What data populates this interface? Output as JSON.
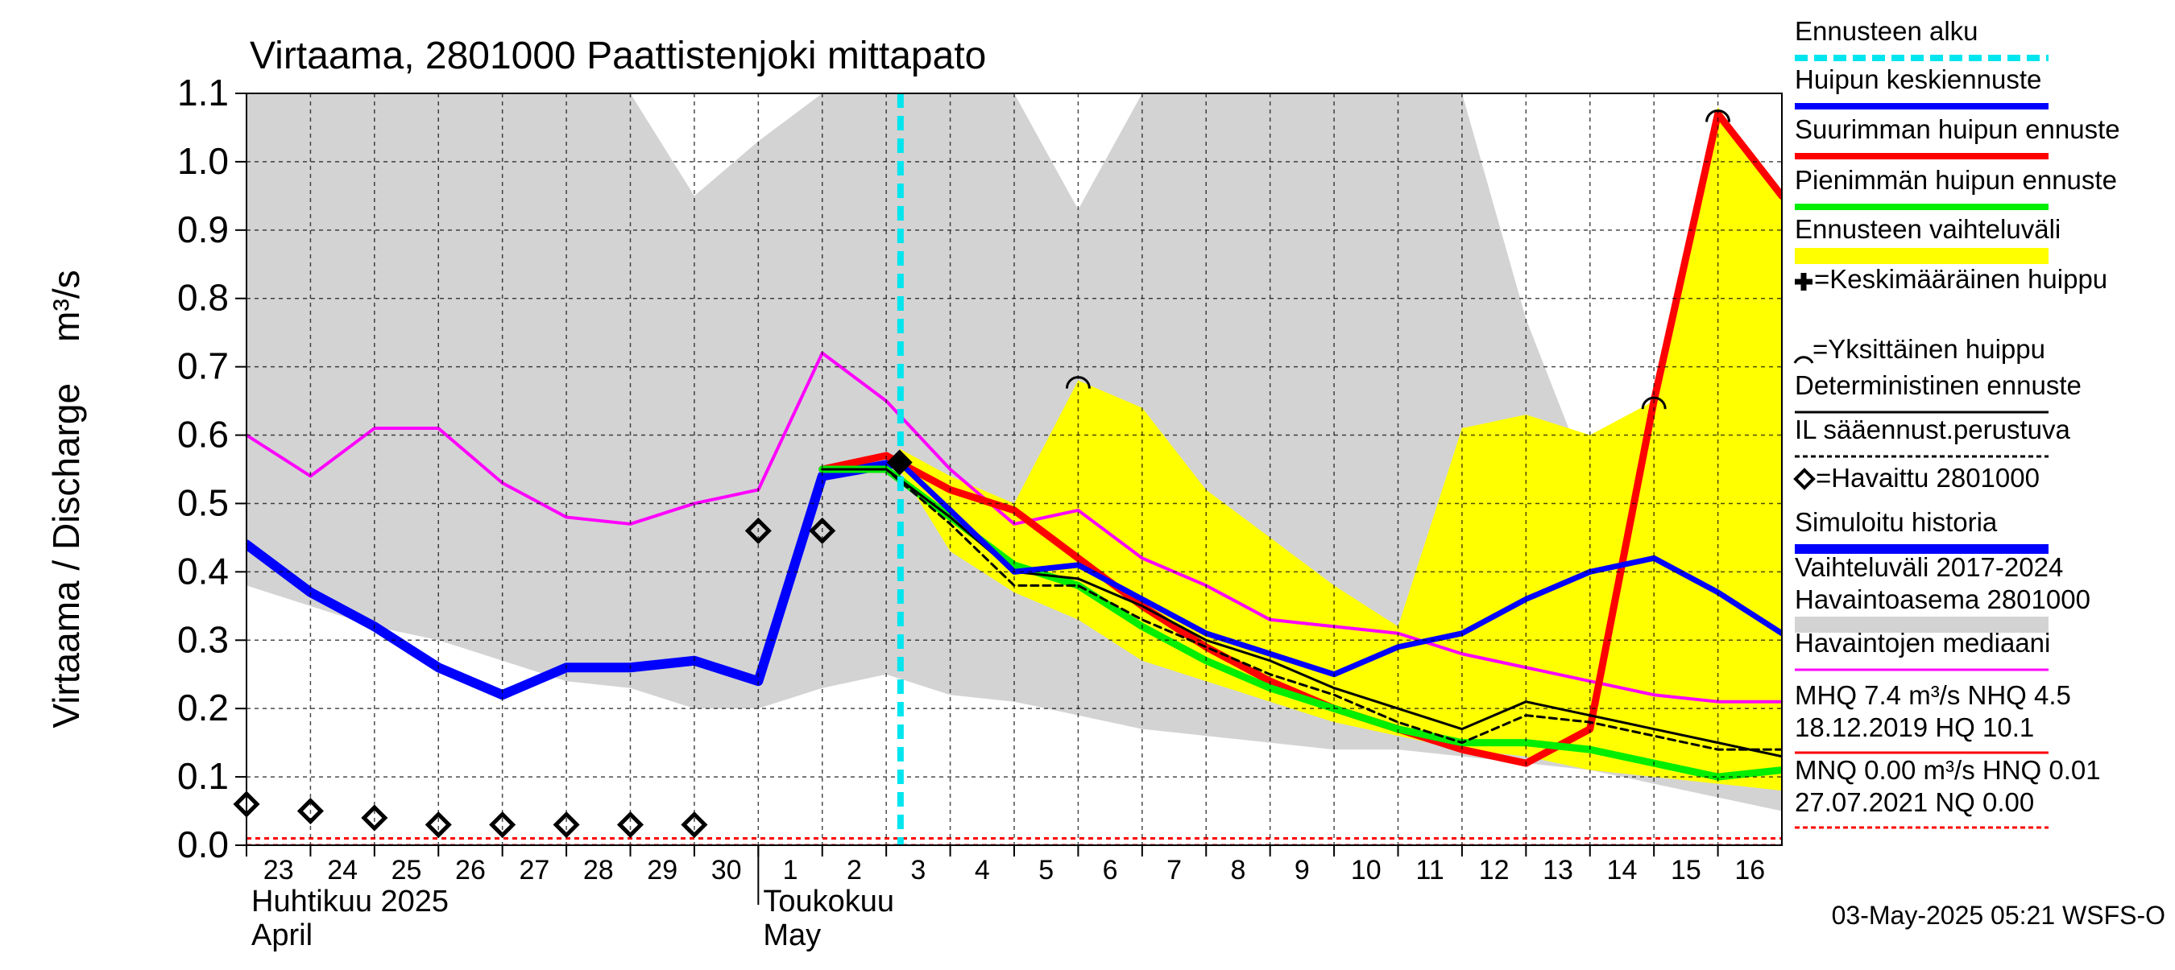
{
  "chart_data": {
    "type": "line",
    "title": "Virtaama, 2801000 Paattistenjoki mittapato",
    "ylabel": "Virtaama / Discharge    m³/s",
    "ylim": [
      0,
      1.1
    ],
    "yticks": [
      "0.0",
      "0.1",
      "0.2",
      "0.3",
      "0.4",
      "0.5",
      "0.6",
      "0.7",
      "0.8",
      "0.9",
      "1.0",
      "1.1"
    ],
    "x_days": [
      "23",
      "24",
      "25",
      "26",
      "27",
      "28",
      "29",
      "30",
      "1",
      "2",
      "3",
      "4",
      "5",
      "6",
      "7",
      "8",
      "9",
      "10",
      "11",
      "12",
      "13",
      "14",
      "15",
      "16"
    ],
    "month_labels": [
      {
        "fi": "Huhtikuu  2025",
        "en": "April"
      },
      {
        "fi": "Toukokuu",
        "en": "May"
      }
    ],
    "forecast_start": "2025-05-03 05:21",
    "footer": "03-May-2025 05:21 WSFS-O",
    "history_band": {
      "name": "Vaihteluväli 2017-2024",
      "x": [
        "2025-04-23 00:00",
        "2025-04-24 00:00",
        "2025-04-25 00:00",
        "2025-04-26 00:00",
        "2025-04-27 00:00",
        "2025-04-28 00:00",
        "2025-04-29 00:00",
        "2025-04-30 00:00",
        "2025-05-01 00:00",
        "2025-05-02 00:00",
        "2025-05-03 00:00",
        "2025-05-04 00:00",
        "2025-05-05 00:00",
        "2025-05-06 00:00",
        "2025-05-07 00:00",
        "2025-05-08 00:00",
        "2025-05-09 00:00",
        "2025-05-10 00:00",
        "2025-05-11 00:00",
        "2025-05-12 00:00",
        "2025-05-13 00:00",
        "2025-05-14 00:00",
        "2025-05-15 00:00",
        "2025-05-16 00:00",
        "2025-05-17 00:00"
      ],
      "upper": [
        1.1,
        1.1,
        1.1,
        1.1,
        1.1,
        1.1,
        1.1,
        0.95,
        1.03,
        1.1,
        1.1,
        1.1,
        1.1,
        0.93,
        1.1,
        1.1,
        1.1,
        1.1,
        1.1,
        1.1,
        0.77,
        0.53,
        0.51,
        0.5,
        0.72
      ],
      "lower": [
        0.38,
        0.35,
        0.32,
        0.3,
        0.27,
        0.24,
        0.23,
        0.2,
        0.2,
        0.23,
        0.25,
        0.22,
        0.21,
        0.19,
        0.17,
        0.16,
        0.15,
        0.14,
        0.14,
        0.13,
        0.12,
        0.11,
        0.09,
        0.07,
        0.05
      ]
    },
    "forecast_band": {
      "name": "Ennusteen vaihteluväli",
      "x": [
        "2025-05-03 05:00",
        "2025-05-04 00:00",
        "2025-05-05 00:00",
        "2025-05-06 00:00",
        "2025-05-07 00:00",
        "2025-05-08 00:00",
        "2025-05-09 00:00",
        "2025-05-10 00:00",
        "2025-05-11 00:00",
        "2025-05-12 00:00",
        "2025-05-13 00:00",
        "2025-05-14 00:00",
        "2025-05-15 00:00",
        "2025-05-16 00:00",
        "2025-05-17 00:00"
      ],
      "upper": [
        0.58,
        0.54,
        0.5,
        0.68,
        0.64,
        0.52,
        0.45,
        0.38,
        0.32,
        0.61,
        0.63,
        0.6,
        0.65,
        1.08,
        0.95
      ],
      "lower": [
        0.55,
        0.43,
        0.37,
        0.33,
        0.27,
        0.24,
        0.21,
        0.18,
        0.16,
        0.14,
        0.13,
        0.11,
        0.1,
        0.09,
        0.08
      ]
    },
    "series": [
      {
        "name": "Havaintojen mediaani",
        "color": "#ff00ff",
        "x": [
          "2025-04-23 00:00",
          "2025-04-24 00:00",
          "2025-04-25 00:00",
          "2025-04-26 00:00",
          "2025-04-27 00:00",
          "2025-04-28 00:00",
          "2025-04-29 00:00",
          "2025-04-30 00:00",
          "2025-05-01 00:00",
          "2025-05-02 00:00",
          "2025-05-03 00:00",
          "2025-05-04 00:00",
          "2025-05-05 00:00",
          "2025-05-06 00:00",
          "2025-05-07 00:00",
          "2025-05-08 00:00",
          "2025-05-09 00:00",
          "2025-05-10 00:00",
          "2025-05-11 00:00",
          "2025-05-12 00:00",
          "2025-05-13 00:00",
          "2025-05-14 00:00",
          "2025-05-15 00:00",
          "2025-05-16 00:00",
          "2025-05-17 00:00"
        ],
        "y": [
          0.6,
          0.54,
          0.61,
          0.61,
          0.53,
          0.48,
          0.47,
          0.5,
          0.52,
          0.72,
          0.65,
          0.55,
          0.47,
          0.49,
          0.42,
          0.38,
          0.33,
          0.32,
          0.31,
          0.28,
          0.26,
          0.24,
          0.22,
          0.21,
          0.21
        ]
      },
      {
        "name": "Simuloitu historia",
        "color": "#0000ff",
        "x": [
          "2025-04-23 00:00",
          "2025-04-24 00:00",
          "2025-04-25 00:00",
          "2025-04-26 00:00",
          "2025-04-27 00:00",
          "2025-04-28 00:00",
          "2025-04-29 00:00",
          "2025-04-30 00:00",
          "2025-05-01 00:00",
          "2025-05-02 00:00",
          "2025-05-03 05:00"
        ],
        "y": [
          0.44,
          0.37,
          0.32,
          0.26,
          0.22,
          0.26,
          0.26,
          0.27,
          0.24,
          0.54,
          0.56
        ]
      },
      {
        "name": "Suurimman huipun ennuste",
        "color": "#ff0000",
        "x": [
          "2025-05-02 00:00",
          "2025-05-03 00:00",
          "2025-05-04 00:00",
          "2025-05-05 00:00",
          "2025-05-06 00:00",
          "2025-05-07 00:00",
          "2025-05-08 00:00",
          "2025-05-09 00:00",
          "2025-05-10 00:00",
          "2025-05-11 00:00",
          "2025-05-12 00:00",
          "2025-05-13 00:00",
          "2025-05-14 00:00",
          "2025-05-15 00:00",
          "2025-05-16 00:00",
          "2025-05-17 00:00"
        ],
        "y": [
          0.55,
          0.57,
          0.52,
          0.49,
          0.42,
          0.35,
          0.29,
          0.24,
          0.2,
          0.17,
          0.14,
          0.12,
          0.17,
          0.65,
          1.07,
          0.95
        ]
      },
      {
        "name": "Pienimmän huipun ennuste",
        "color": "#00ee00",
        "x": [
          "2025-05-02 00:00",
          "2025-05-03 00:00",
          "2025-05-04 00:00",
          "2025-05-05 00:00",
          "2025-05-06 00:00",
          "2025-05-07 00:00",
          "2025-05-08 00:00",
          "2025-05-09 00:00",
          "2025-05-10 00:00",
          "2025-05-11 00:00",
          "2025-05-12 00:00",
          "2025-05-13 00:00",
          "2025-05-14 00:00",
          "2025-05-15 00:00",
          "2025-05-16 00:00",
          "2025-05-17 00:00"
        ],
        "y": [
          0.55,
          0.55,
          0.48,
          0.41,
          0.38,
          0.32,
          0.27,
          0.23,
          0.2,
          0.17,
          0.15,
          0.15,
          0.14,
          0.12,
          0.1,
          0.11
        ]
      },
      {
        "name": "Deterministinen ennuste",
        "color": "#000000",
        "x": [
          "2025-05-02 00:00",
          "2025-05-03 00:00",
          "2025-05-04 00:00",
          "2025-05-05 00:00",
          "2025-05-06 00:00",
          "2025-05-07 00:00",
          "2025-05-08 00:00",
          "2025-05-09 00:00",
          "2025-05-10 00:00",
          "2025-05-11 00:00",
          "2025-05-12 00:00",
          "2025-05-13 00:00",
          "2025-05-14 00:00",
          "2025-05-15 00:00",
          "2025-05-16 00:00",
          "2025-05-17 00:00"
        ],
        "y": [
          0.55,
          0.55,
          0.48,
          0.4,
          0.39,
          0.35,
          0.3,
          0.27,
          0.23,
          0.2,
          0.17,
          0.21,
          0.19,
          0.17,
          0.15,
          0.13
        ]
      },
      {
        "name": "IL sääennust.perustuva",
        "color": "#000000",
        "dashed": true,
        "x": [
          "2025-05-02 00:00",
          "2025-05-03 00:00",
          "2025-05-04 00:00",
          "2025-05-05 00:00",
          "2025-05-06 00:00",
          "2025-05-07 00:00",
          "2025-05-08 00:00",
          "2025-05-09 00:00",
          "2025-05-10 00:00",
          "2025-05-11 00:00",
          "2025-05-12 00:00",
          "2025-05-13 00:00",
          "2025-05-14 00:00",
          "2025-05-15 00:00",
          "2025-05-16 00:00",
          "2025-05-17 00:00"
        ],
        "y": [
          0.55,
          0.55,
          0.47,
          0.38,
          0.38,
          0.33,
          0.29,
          0.25,
          0.22,
          0.18,
          0.15,
          0.19,
          0.18,
          0.16,
          0.14,
          0.14
        ]
      },
      {
        "name": "Huipun keskiennuste",
        "color": "#0000ff",
        "x": [
          "2025-05-03 05:00",
          "2025-05-04 00:00",
          "2025-05-05 00:00",
          "2025-05-06 00:00",
          "2025-05-07 00:00",
          "2025-05-08 00:00",
          "2025-05-09 00:00",
          "2025-05-10 00:00",
          "2025-05-11 00:00",
          "2025-05-12 00:00",
          "2025-05-13 00:00",
          "2025-05-14 00:00",
          "2025-05-15 00:00",
          "2025-05-16 00:00",
          "2025-05-17 00:00"
        ],
        "y": [
          0.56,
          0.49,
          0.4,
          0.41,
          0.36,
          0.31,
          0.28,
          0.25,
          0.29,
          0.31,
          0.36,
          0.4,
          0.42,
          0.37,
          0.31
        ]
      }
    ],
    "observed": {
      "name": "Havaittu 2801000",
      "x": [
        "2025-04-23 00:00",
        "2025-04-24 00:00",
        "2025-04-25 00:00",
        "2025-04-26 00:00",
        "2025-04-27 00:00",
        "2025-04-28 00:00",
        "2025-04-29 00:00",
        "2025-04-30 00:00",
        "2025-05-01 00:00",
        "2025-05-02 00:00"
      ],
      "y": [
        0.06,
        0.05,
        0.04,
        0.03,
        0.03,
        0.03,
        0.03,
        0.03,
        0.46,
        0.46
      ]
    },
    "mean_peak": {
      "x": "2025-05-03 05:00",
      "y": 0.56
    },
    "single_peaks": [
      {
        "x": "2025-05-06 00:00",
        "y": 0.68
      },
      {
        "x": "2025-05-15 00:00",
        "y": 0.65
      },
      {
        "x": "2025-05-16 00:00",
        "y": 1.07
      }
    ],
    "ref_lines": [
      {
        "name": "NQ",
        "y": 0.0
      },
      {
        "name": "HNQ",
        "y": 0.01
      }
    ],
    "legend_placement": "right",
    "legend": [
      {
        "text": "Ennusteen alku",
        "color": "#00e5ee",
        "style": "dashed"
      },
      {
        "text": "Huipun keskiennuste",
        "color": "#0000ff",
        "style": "line"
      },
      {
        "text": "Suurimman huipun ennuste",
        "color": "#ff0000",
        "style": "line"
      },
      {
        "text": "Pienimmän huipun ennuste",
        "color": "#00ee00",
        "style": "line"
      },
      {
        "text": "Ennusteen vaihteluväli",
        "color": "#ffff00",
        "style": "band"
      },
      {
        "text": "=Keskimääräinen huippu",
        "color": "#000000",
        "style": "marker-plus"
      },
      {
        "text": "=Yksittäinen huippu",
        "color": "#000000",
        "style": "marker-arc"
      },
      {
        "text": "Deterministinen ennuste",
        "color": "#000000",
        "style": "thin"
      },
      {
        "text": "IL sääennust.perustuva",
        "color": "#000000",
        "style": "dotted"
      },
      {
        "text": "=Havaittu 2801000",
        "color": "#000000",
        "style": "marker-diamond"
      },
      {
        "text": "Simuloitu historia",
        "color": "#0000ff",
        "style": "thick"
      },
      {
        "text": "Vaihteluväli 2017-2024",
        "text2": " Havaintoasema 2801000",
        "color": "#d3d3d3",
        "style": "grayband"
      },
      {
        "text": "Havaintojen mediaani",
        "color": "#ff00ff",
        "style": "thin"
      },
      {
        "text": "MHQ  7.4 m³/s NHQ  4.5",
        "text2": "18.12.2019 HQ 10.1",
        "color": "#ff0000",
        "style": "thin"
      },
      {
        "text": "MNQ 0.00 m³/s HNQ 0.01",
        "text2": "27.07.2021 NQ 0.00",
        "color": "#ff0000",
        "style": "dotted"
      }
    ]
  }
}
